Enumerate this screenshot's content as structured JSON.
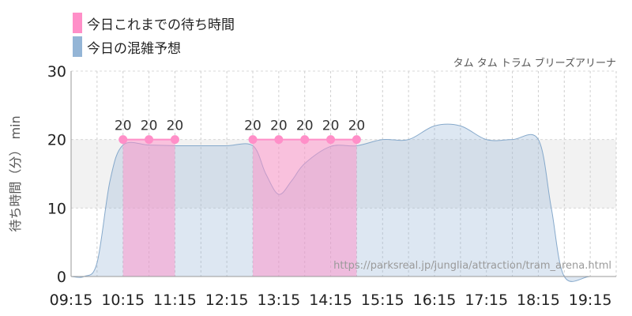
{
  "chart_data": {
    "type": "area",
    "subtitle": "タム タム トラム ブリーズアリーナ",
    "ylabel": "待ち時間（分） min",
    "xlabel": "",
    "ylim": [
      0,
      30
    ],
    "yticks": [
      0,
      10,
      20,
      30
    ],
    "x_ticks": [
      "09:15",
      "10:15",
      "11:15",
      "12:15",
      "13:15",
      "14:15",
      "15:15",
      "16:15",
      "17:15",
      "18:15",
      "19:15"
    ],
    "watermark": "https://parksreal.jp/junglia/attraction/tram_arena.html",
    "grid": true,
    "legend_position": "top-left",
    "series": [
      {
        "name": "今日これまでの待ち時間",
        "color": "#ff8fc8",
        "points": [
          {
            "time": "10:15",
            "value": 20,
            "label": "20"
          },
          {
            "time": "10:45",
            "value": 20,
            "label": "20"
          },
          {
            "time": "11:15",
            "value": 20,
            "label": "20"
          },
          {
            "time": "12:45",
            "value": 20,
            "label": "20"
          },
          {
            "time": "13:15",
            "value": 20,
            "label": "20"
          },
          {
            "time": "13:45",
            "value": 20,
            "label": "20"
          },
          {
            "time": "14:15",
            "value": 20,
            "label": "20"
          },
          {
            "time": "14:45",
            "value": 20,
            "label": "20"
          }
        ]
      },
      {
        "name": "今日の混雑予想",
        "color": "#94b5d6",
        "points": [
          {
            "time": "09:15",
            "value": 0
          },
          {
            "time": "09:30",
            "value": 0
          },
          {
            "time": "09:45",
            "value": 2
          },
          {
            "time": "10:00",
            "value": 14
          },
          {
            "time": "10:15",
            "value": 19.2
          },
          {
            "time": "10:45",
            "value": 19.2
          },
          {
            "time": "11:15",
            "value": 19.1
          },
          {
            "time": "11:45",
            "value": 19.1
          },
          {
            "time": "12:15",
            "value": 19.1
          },
          {
            "time": "12:45",
            "value": 19.1
          },
          {
            "time": "13:00",
            "value": 15
          },
          {
            "time": "13:15",
            "value": 12
          },
          {
            "time": "13:30",
            "value": 14
          },
          {
            "time": "13:45",
            "value": 16.5
          },
          {
            "time": "14:15",
            "value": 19
          },
          {
            "time": "14:45",
            "value": 19.1
          },
          {
            "time": "15:15",
            "value": 20
          },
          {
            "time": "15:45",
            "value": 20
          },
          {
            "time": "16:15",
            "value": 22
          },
          {
            "time": "16:45",
            "value": 22
          },
          {
            "time": "17:15",
            "value": 20
          },
          {
            "time": "17:45",
            "value": 20
          },
          {
            "time": "18:15",
            "value": 20
          },
          {
            "time": "18:30",
            "value": 10
          },
          {
            "time": "18:45",
            "value": 0
          },
          {
            "time": "19:15",
            "value": 0
          },
          {
            "time": "19:45",
            "value": 0
          }
        ]
      }
    ]
  }
}
